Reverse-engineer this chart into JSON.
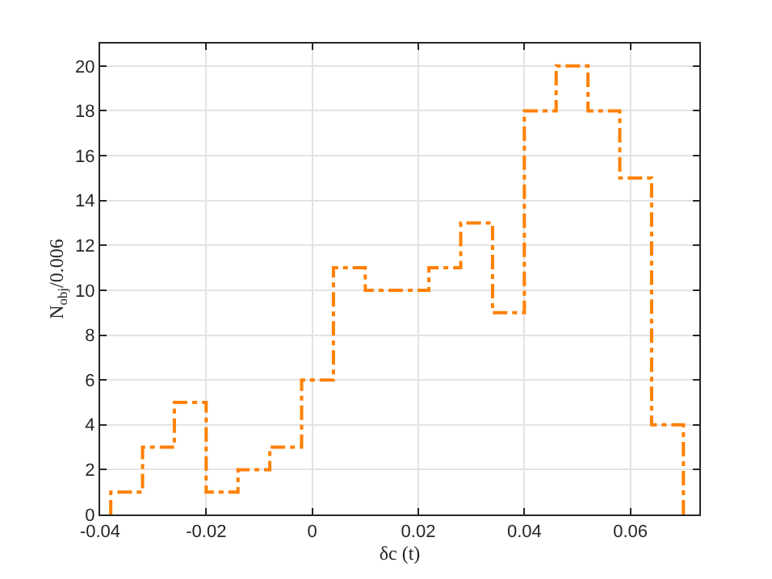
{
  "chart_data": {
    "type": "histogram",
    "xlabel": "δc (t)",
    "ylabel": "N$_{obj}$/0.006",
    "bins": [
      -0.038,
      -0.032,
      -0.026,
      -0.02,
      -0.014,
      -0.008,
      -0.002,
      0.004,
      0.01,
      0.016,
      0.022,
      0.028,
      0.034,
      0.04,
      0.046,
      0.052,
      0.058,
      0.064,
      0.07
    ],
    "values": [
      1,
      3,
      5,
      1,
      2,
      3,
      6,
      11,
      10,
      10,
      11,
      13,
      9,
      18,
      20,
      18,
      15,
      4
    ],
    "color": "#ff8000",
    "line_style": "dashdot",
    "xlim": [
      -0.04,
      0.073
    ],
    "xticks": [
      {
        "value": -0.04,
        "label": "-0.04"
      },
      {
        "value": -0.02,
        "label": "-0.02"
      },
      0,
      {
        "value": 0.02,
        "label": "0.02"
      },
      {
        "value": 0.04,
        "label": "0.04"
      },
      {
        "value": 0.06,
        "label": "0.06"
      }
    ],
    "ylim": [
      0,
      21
    ],
    "yticks": [
      0,
      2,
      4,
      6,
      8,
      10,
      12,
      14,
      16,
      18,
      20
    ],
    "grid": true
  }
}
